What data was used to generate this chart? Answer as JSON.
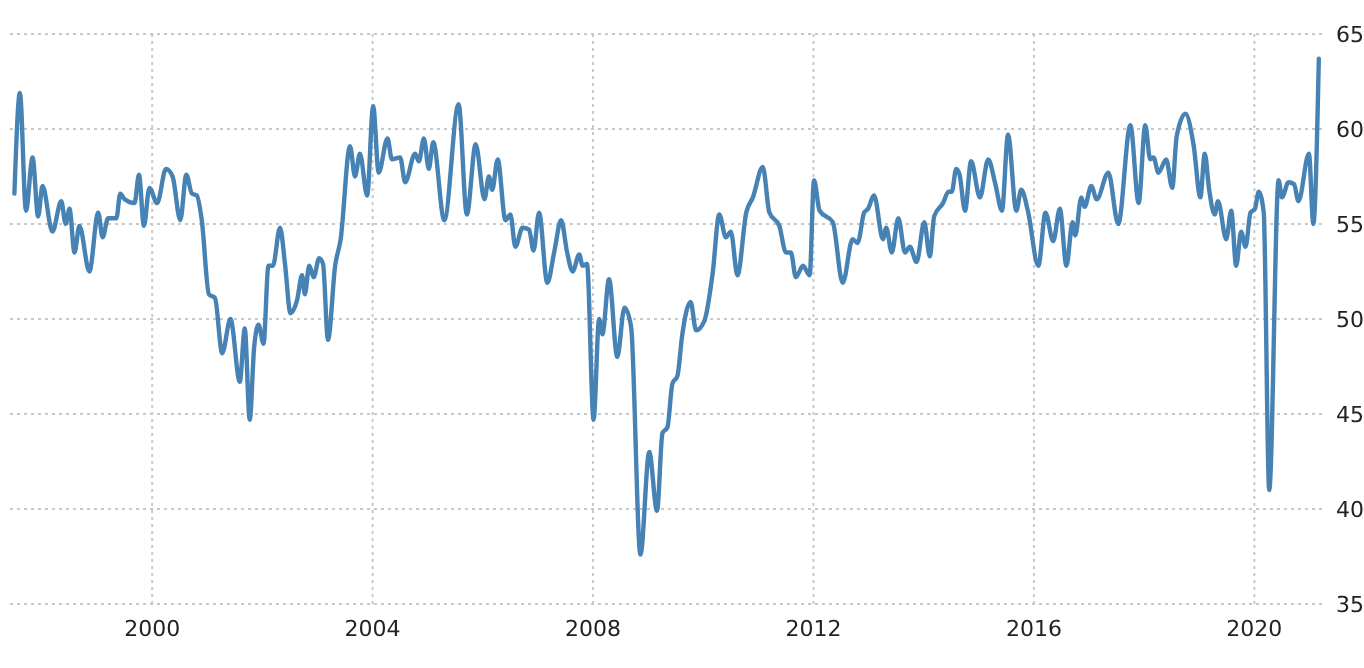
{
  "chart_data": {
    "type": "line",
    "x": [
      1997.5,
      1997.6,
      1997.71,
      1997.83,
      1997.93,
      1998.01,
      1998.19,
      1998.35,
      1998.43,
      1998.5,
      1998.59,
      1998.68,
      1998.86,
      1999.02,
      1999.1,
      1999.2,
      1999.35,
      1999.42,
      1999.5,
      1999.68,
      1999.76,
      1999.85,
      1999.95,
      2000.09,
      2000.25,
      2000.37,
      2000.51,
      2000.62,
      2000.72,
      2000.81,
      2000.9,
      2001.03,
      2001.14,
      2001.27,
      2001.42,
      2001.59,
      2001.68,
      2001.77,
      2001.85,
      2001.93,
      2002.02,
      2002.11,
      2002.19,
      2002.32,
      2002.41,
      2002.51,
      2002.63,
      2002.72,
      2002.77,
      2002.85,
      2002.93,
      2003.03,
      2003.1,
      2003.19,
      2003.32,
      2003.42,
      2003.59,
      2003.68,
      2003.77,
      2003.9,
      2004.01,
      2004.11,
      2004.27,
      2004.35,
      2004.5,
      2004.59,
      2004.77,
      2004.84,
      2004.93,
      2005.02,
      2005.1,
      2005.3,
      2005.56,
      2005.71,
      2005.87,
      2006.03,
      2006.11,
      2006.17,
      2006.27,
      2006.41,
      2006.5,
      2006.59,
      2006.72,
      2006.84,
      2006.92,
      2007.02,
      2007.17,
      2007.3,
      2007.42,
      2007.53,
      2007.63,
      2007.75,
      2007.81,
      2007.89,
      2008.01,
      2008.11,
      2008.17,
      2008.29,
      2008.44,
      2008.57,
      2008.69,
      2008.86,
      2009.02,
      2009.16,
      2009.26,
      2009.35,
      2009.44,
      2009.53,
      2009.62,
      2009.77,
      2009.87,
      2010.02,
      2010.17,
      2010.29,
      2010.41,
      2010.5,
      2010.62,
      2010.78,
      2010.9,
      2011.08,
      2011.2,
      2011.38,
      2011.5,
      2011.59,
      2011.68,
      2011.81,
      2011.93,
      2012.01,
      2012.11,
      2012.35,
      2012.53,
      2012.71,
      2012.8,
      2012.92,
      2012.99,
      2013.1,
      2013.26,
      2013.32,
      2013.42,
      2013.54,
      2013.66,
      2013.75,
      2013.87,
      2014.01,
      2014.11,
      2014.19,
      2014.35,
      2014.45,
      2014.51,
      2014.59,
      2014.65,
      2014.75,
      2014.86,
      2015.02,
      2015.17,
      2015.3,
      2015.42,
      2015.53,
      2015.68,
      2015.77,
      2015.89,
      2016.08,
      2016.21,
      2016.35,
      2016.47,
      2016.59,
      2016.7,
      2016.75,
      2016.86,
      2016.92,
      2017.04,
      2017.14,
      2017.35,
      2017.53,
      2017.75,
      2017.9,
      2018.02,
      2018.11,
      2018.17,
      2018.26,
      2018.4,
      2018.51,
      2018.59,
      2018.75,
      2018.9,
      2019.02,
      2019.1,
      2019.18,
      2019.28,
      2019.34,
      2019.49,
      2019.58,
      2019.67,
      2019.76,
      2019.84,
      2019.93,
      2020.01,
      2020.08,
      2020.17,
      2020.27,
      2020.44,
      2020.5,
      2020.62,
      2020.72,
      2020.8,
      2020.99,
      2021.07,
      2021.17
    ],
    "series": [
      {
        "color": "#4682b4",
        "values": [
          56.6,
          61.9,
          55.7,
          58.5,
          55.4,
          57.0,
          54.6,
          56.2,
          55.0,
          55.8,
          53.5,
          54.9,
          52.5,
          55.6,
          54.3,
          55.3,
          55.3,
          56.6,
          56.3,
          56.1,
          57.6,
          54.9,
          56.9,
          56.1,
          57.9,
          57.5,
          55.2,
          57.6,
          56.6,
          56.5,
          55.2,
          51.3,
          51.1,
          48.2,
          50.0,
          46.7,
          49.5,
          44.7,
          48.5,
          49.7,
          48.7,
          52.8,
          52.8,
          54.8,
          52.9,
          50.3,
          51.0,
          52.3,
          51.3,
          52.8,
          52.2,
          53.2,
          52.9,
          48.9,
          52.8,
          54.2,
          59.1,
          57.5,
          58.7,
          56.5,
          61.2,
          57.7,
          59.5,
          58.4,
          58.5,
          57.2,
          58.7,
          58.3,
          59.5,
          57.9,
          59.3,
          55.2,
          61.3,
          55.5,
          59.2,
          56.3,
          57.5,
          56.8,
          58.4,
          55.2,
          55.5,
          53.8,
          54.8,
          54.7,
          53.6,
          55.6,
          51.9,
          53.6,
          55.2,
          53.5,
          52.5,
          53.4,
          52.8,
          52.9,
          44.7,
          50.0,
          49.2,
          52.1,
          48.0,
          50.6,
          49.6,
          37.6,
          43.0,
          39.9,
          44.0,
          44.3,
          46.6,
          47.0,
          49.2,
          50.9,
          49.4,
          49.9,
          52.4,
          55.5,
          54.3,
          54.6,
          52.3,
          55.6,
          56.4,
          58.0,
          55.6,
          54.9,
          53.5,
          53.5,
          52.2,
          52.8,
          52.3,
          57.3,
          55.7,
          55.1,
          51.9,
          54.2,
          54.0,
          55.6,
          55.8,
          56.5,
          54.2,
          54.8,
          53.5,
          55.3,
          53.5,
          53.8,
          53.0,
          55.1,
          53.3,
          55.4,
          56.1,
          56.7,
          56.7,
          57.9,
          57.6,
          55.7,
          58.3,
          56.4,
          58.4,
          57.1,
          55.7,
          59.7,
          55.7,
          56.8,
          55.7,
          52.8,
          55.6,
          54.1,
          55.8,
          52.8,
          55.1,
          54.4,
          56.4,
          55.9,
          57.0,
          56.3,
          57.7,
          55.0,
          60.2,
          56.1,
          60.2,
          58.4,
          58.5,
          57.7,
          58.4,
          56.9,
          59.6,
          60.8,
          59.1,
          56.4,
          58.7,
          56.8,
          55.5,
          56.2,
          54.2,
          55.7,
          52.8,
          54.6,
          53.8,
          55.6,
          55.8,
          56.7,
          55.6,
          41.0,
          57.3,
          56.4,
          57.2,
          57.1,
          56.2,
          58.7,
          55.0,
          63.7
        ]
      }
    ],
    "xlim": [
      1997.42,
      2021.3
    ],
    "xticks": [
      2000,
      2004,
      2008,
      2012,
      2016,
      2020
    ],
    "ylim": [
      35,
      65
    ],
    "yticks": [
      35,
      40,
      45,
      50,
      55,
      60,
      65
    ],
    "grid": true
  }
}
